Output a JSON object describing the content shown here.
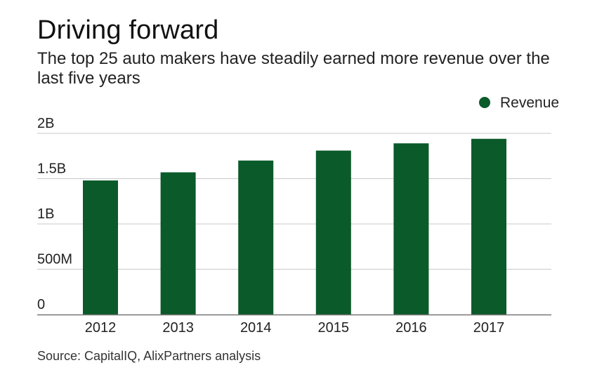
{
  "header": {
    "title": "Driving forward",
    "subtitle": "The top 25 auto makers have steadily earned more revenue over the last five years"
  },
  "footer": {
    "source": "Source: CapitalIQ, AlixPartners analysis"
  },
  "colors": {
    "bar": "#0b5a2a",
    "grid": "#c8c8c8",
    "axis": "#777777"
  },
  "chart_data": {
    "type": "bar",
    "title": "Driving forward",
    "categories": [
      "2012",
      "2013",
      "2014",
      "2015",
      "2016",
      "2017"
    ],
    "series": [
      {
        "name": "Revenue",
        "values": [
          1480000000,
          1570000000,
          1700000000,
          1810000000,
          1890000000,
          1940000000
        ]
      }
    ],
    "ylim": [
      0,
      2000000000
    ],
    "yticks": [
      0,
      500000000,
      1000000000,
      1500000000,
      2000000000
    ],
    "ytick_labels": [
      "0",
      "500M",
      "1B",
      "1.5B",
      "2B"
    ],
    "xlabel": "",
    "ylabel": "",
    "legend": {
      "position": "top-right",
      "entries": [
        "Revenue"
      ]
    },
    "grid": true
  }
}
